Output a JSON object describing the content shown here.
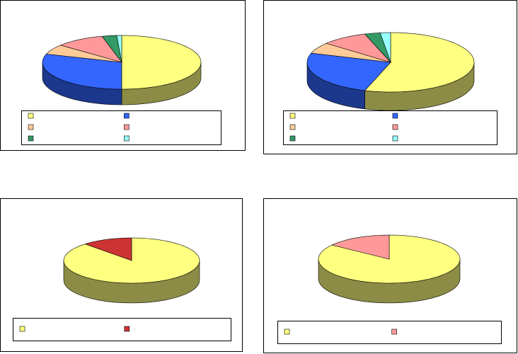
{
  "chart_data": [
    {
      "type": "pie",
      "categories": [
        null,
        null,
        null,
        null,
        null,
        null
      ],
      "values": [
        50,
        30,
        6,
        10,
        3,
        1
      ],
      "colors": [
        "#ffff80",
        "#3366ff",
        "#ffcc99",
        "#ff9999",
        "#339966",
        "#99ffff"
      ],
      "legend": "bottom"
    },
    {
      "type": "pie",
      "categories": [
        null,
        null,
        null,
        null,
        null,
        null
      ],
      "values": [
        55,
        25,
        6,
        9,
        3,
        2
      ],
      "colors": [
        "#ffff80",
        "#3366ff",
        "#ffcc99",
        "#ff9999",
        "#339966",
        "#99ffff"
      ],
      "legend": "bottom"
    },
    {
      "type": "pie",
      "categories": [
        null,
        null
      ],
      "values": [
        88,
        12
      ],
      "colors": [
        "#ffff80",
        "#cc3333"
      ],
      "legend": "bottom"
    },
    {
      "type": "pie",
      "categories": [
        null,
        null
      ],
      "values": [
        85,
        15
      ],
      "colors": [
        "#ffff80",
        "#ff9999"
      ],
      "legend": "bottom"
    }
  ]
}
